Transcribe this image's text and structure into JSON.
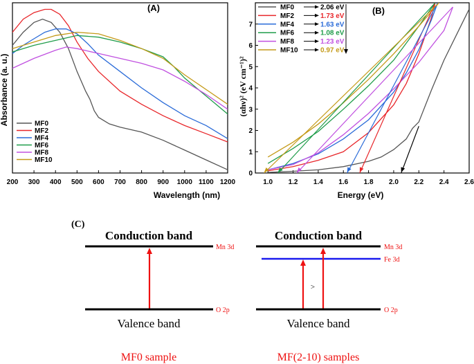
{
  "chart_data": [
    {
      "type": "line",
      "panel": "(A)",
      "xlabel": "Wavelength (nm)",
      "ylabel": "Absorbance (a. u.)",
      "xlim": [
        200,
        1200
      ],
      "xticks": [
        200,
        300,
        400,
        500,
        600,
        700,
        800,
        900,
        1000,
        1100,
        1200
      ],
      "y_tick_labels": false,
      "legend": "bottom-left",
      "series": [
        {
          "name": "MF0",
          "color": "#555555",
          "x": [
            200,
            250,
            300,
            340,
            380,
            420,
            460,
            500,
            540,
            560,
            580,
            600,
            650,
            700,
            800,
            900,
            1000,
            1100,
            1200
          ],
          "y": [
            0.78,
            0.86,
            0.92,
            0.94,
            0.92,
            0.86,
            0.76,
            0.62,
            0.5,
            0.45,
            0.38,
            0.34,
            0.3,
            0.28,
            0.25,
            0.2,
            0.14,
            0.08,
            0.02
          ]
        },
        {
          "name": "MF2",
          "color": "#e8262a",
          "x": [
            200,
            250,
            300,
            350,
            380,
            420,
            460,
            500,
            550,
            600,
            700,
            800,
            900,
            1000,
            1100,
            1200
          ],
          "y": [
            0.86,
            0.94,
            0.98,
            1.0,
            1.0,
            0.97,
            0.9,
            0.8,
            0.7,
            0.62,
            0.5,
            0.42,
            0.35,
            0.29,
            0.24,
            0.19
          ]
        },
        {
          "name": "MF4",
          "color": "#2a6bd8",
          "x": [
            200,
            250,
            300,
            350,
            400,
            450,
            500,
            550,
            600,
            700,
            800,
            900,
            1000,
            1100,
            1200
          ],
          "y": [
            0.73,
            0.78,
            0.82,
            0.86,
            0.88,
            0.88,
            0.85,
            0.79,
            0.72,
            0.62,
            0.52,
            0.43,
            0.35,
            0.29,
            0.21
          ]
        },
        {
          "name": "MF6",
          "color": "#1f9c4a",
          "x": [
            200,
            300,
            400,
            500,
            600,
            700,
            800,
            900,
            950,
            1000,
            1100,
            1200
          ],
          "y": [
            0.74,
            0.78,
            0.81,
            0.84,
            0.83,
            0.8,
            0.76,
            0.71,
            0.65,
            0.58,
            0.47,
            0.36
          ]
        },
        {
          "name": "MF8",
          "color": "#c050e0",
          "x": [
            200,
            300,
            400,
            450,
            500,
            600,
            700,
            800,
            900,
            1000,
            1100,
            1200
          ],
          "y": [
            0.64,
            0.7,
            0.75,
            0.77,
            0.76,
            0.73,
            0.7,
            0.67,
            0.63,
            0.56,
            0.48,
            0.39
          ]
        },
        {
          "name": "MF10",
          "color": "#c49a18",
          "x": [
            200,
            300,
            400,
            500,
            600,
            700,
            800,
            900,
            1000,
            1100,
            1200
          ],
          "y": [
            0.76,
            0.8,
            0.84,
            0.86,
            0.85,
            0.81,
            0.76,
            0.7,
            0.6,
            0.51,
            0.42
          ]
        }
      ]
    },
    {
      "type": "line",
      "panel": "(B)",
      "xlabel": "Energy (eV)",
      "ylabel": "(αhν)² (eV cm⁻¹)²",
      "xlim": [
        0.9,
        2.6
      ],
      "ylim": [
        0,
        8
      ],
      "xticks": [
        1.0,
        1.2,
        1.4,
        1.6,
        1.8,
        2.0,
        2.2,
        2.4,
        2.6
      ],
      "yticks": [
        0,
        1,
        2,
        3,
        4,
        5,
        6,
        7
      ],
      "legend": "top-left",
      "series": [
        {
          "name": "MF0",
          "band_gap": "2.06 eV",
          "color": "#555555",
          "x": [
            1.0,
            1.2,
            1.4,
            1.6,
            1.8,
            1.9,
            2.0,
            2.1,
            2.15,
            2.2,
            2.3,
            2.4,
            2.5,
            2.6
          ],
          "y": [
            0.03,
            0.08,
            0.15,
            0.3,
            0.55,
            0.75,
            1.1,
            1.6,
            2.1,
            2.4,
            3.9,
            5.3,
            6.5,
            7.7
          ]
        },
        {
          "name": "MF2",
          "band_gap": "1.73 eV",
          "color": "#e8262a",
          "x": [
            1.0,
            1.2,
            1.4,
            1.6,
            1.8,
            2.0,
            2.1,
            2.2,
            2.3,
            2.33
          ],
          "y": [
            0.1,
            0.3,
            0.6,
            1.0,
            1.9,
            3.2,
            4.2,
            5.6,
            7.3,
            8.0
          ]
        },
        {
          "name": "MF4",
          "band_gap": "1.63 eV",
          "color": "#2a6bd8",
          "x": [
            1.0,
            1.2,
            1.4,
            1.6,
            1.8,
            2.0,
            2.1,
            2.2,
            2.3,
            2.35
          ],
          "y": [
            0.15,
            0.45,
            0.9,
            1.6,
            2.5,
            3.8,
            4.7,
            5.8,
            7.2,
            8.0
          ]
        },
        {
          "name": "MF6",
          "band_gap": "1.08 eV",
          "color": "#1f9c4a",
          "x": [
            1.0,
            1.2,
            1.4,
            1.6,
            1.8,
            2.0,
            2.2,
            2.33
          ],
          "y": [
            0.45,
            1.15,
            1.95,
            3.0,
            4.1,
            5.3,
            6.9,
            8.0
          ]
        },
        {
          "name": "MF8",
          "band_gap": "1.23 eV",
          "color": "#c050e0",
          "x": [
            1.0,
            1.2,
            1.4,
            1.6,
            1.8,
            2.0,
            2.2,
            2.4,
            2.47
          ],
          "y": [
            0.15,
            0.4,
            0.95,
            1.8,
            2.8,
            3.95,
            5.2,
            6.7,
            7.8
          ]
        },
        {
          "name": "MF10",
          "band_gap": "0.97 eV",
          "color": "#c49a18",
          "x": [
            1.0,
            1.2,
            1.4,
            1.6,
            1.8,
            2.0,
            2.2,
            2.36
          ],
          "y": [
            0.75,
            1.45,
            2.3,
            3.3,
            4.4,
            5.6,
            6.9,
            8.0
          ]
        }
      ],
      "tangent_lines": [
        {
          "name": "MF0",
          "color": "#000000",
          "x": [
            2.06,
            2.2
          ],
          "y": [
            0,
            2.2
          ]
        },
        {
          "name": "MF2",
          "color": "#e8262a",
          "x": [
            1.73,
            2.33
          ],
          "y": [
            0,
            8.0
          ]
        },
        {
          "name": "MF4",
          "color": "#2a6bd8",
          "x": [
            1.63,
            2.35
          ],
          "y": [
            0,
            8.0
          ]
        },
        {
          "name": "MF6",
          "color": "#1f9c4a",
          "x": [
            1.08,
            2.33
          ],
          "y": [
            0,
            8.0
          ]
        },
        {
          "name": "MF8",
          "color": "#c050e0",
          "x": [
            1.23,
            2.47
          ],
          "y": [
            0,
            7.8
          ]
        },
        {
          "name": "MF10",
          "color": "#c49a18",
          "x": [
            0.97,
            2.36
          ],
          "y": [
            0,
            8.0
          ]
        }
      ]
    }
  ],
  "panel_c": {
    "label": "(C)",
    "left": {
      "conduction": "Conduction band",
      "valence": "Valence band",
      "top_orbital": "Mn 3d",
      "bottom_orbital": "O 2p",
      "caption": "MF0 sample"
    },
    "right": {
      "conduction": "Conduction band",
      "valence": "Valence band",
      "top_orbital": "Mn 3d",
      "mid_orbital": "Fe 3d",
      "bottom_orbital": "O 2p",
      "compare": ">",
      "caption": "MF(2-10) samples"
    }
  },
  "colors": {
    "arrow": "#ee1111",
    "fe_level": "#1a1aee",
    "band_line": "#000000"
  }
}
